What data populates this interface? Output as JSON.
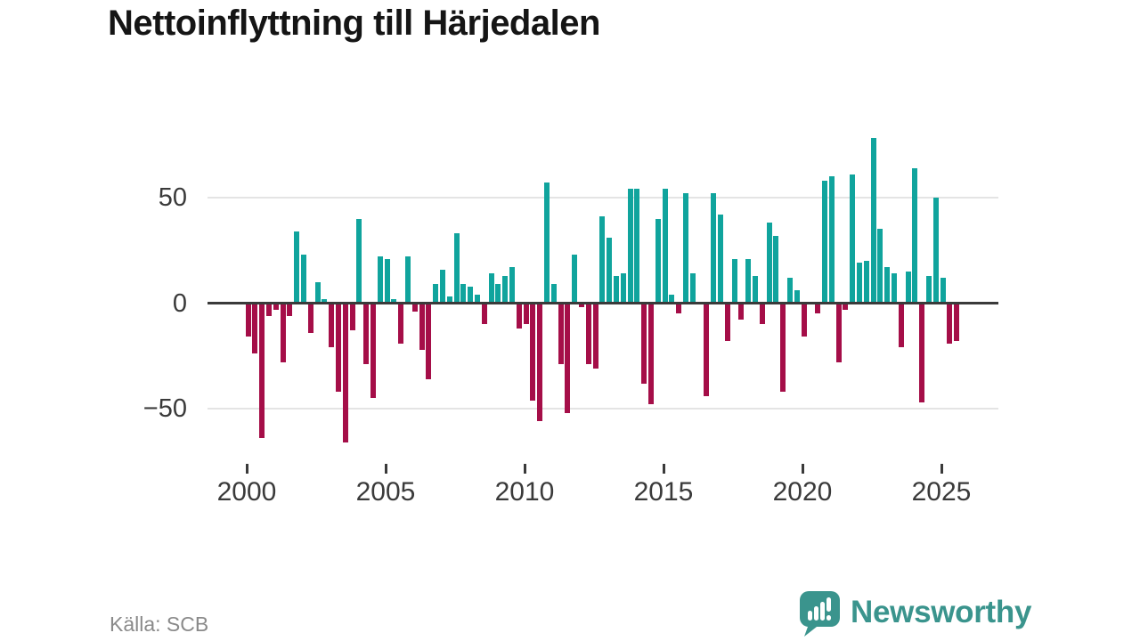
{
  "title": "Nettoinflyttning till Härjedalen",
  "source": {
    "label": "Källa: SCB"
  },
  "brand": {
    "name": "Newsworthy",
    "color": "#3a948d",
    "icon": "newsworthy-speech-bubble-chart"
  },
  "colors": {
    "positive_bar": "#10a49d",
    "negative_bar": "#a50e48",
    "gridline": "#e4e4e4",
    "zero_axis": "#3a3a3a",
    "tick_label": "#3a3a3a",
    "source_text": "#8a8a8a"
  },
  "chart_data": {
    "type": "bar",
    "title": "Nettoinflyttning till Härjedalen",
    "frequency": "quarterly",
    "start_year": 2000,
    "start_quarter": 1,
    "values": [
      -16,
      -24,
      -64,
      -6,
      -3,
      -28,
      -6,
      34,
      23,
      -14,
      10,
      2,
      -21,
      -42,
      -66,
      -13,
      40,
      -29,
      -45,
      22,
      21,
      2,
      -19,
      22,
      -4,
      -22,
      -36,
      9,
      16,
      3,
      33,
      9,
      8,
      4,
      -10,
      14,
      9,
      13,
      17,
      -12,
      -10,
      -46,
      -56,
      57,
      9,
      -29,
      -52,
      23,
      -2,
      -29,
      -31,
      41,
      31,
      13,
      14,
      54,
      54,
      -38,
      -48,
      40,
      54,
      4,
      -5,
      52,
      14,
      0,
      -44,
      52,
      42,
      -18,
      21,
      -8,
      21,
      13,
      -10,
      38,
      32,
      -42,
      12,
      6,
      -16,
      0,
      -5,
      58,
      60,
      -28,
      -3,
      61,
      19,
      20,
      78,
      35,
      17,
      14,
      -21,
      15,
      64,
      -47,
      13,
      50,
      12,
      -19,
      -18
    ],
    "x_axis": {
      "tick_years": [
        2000,
        2005,
        2010,
        2015,
        2020,
        2025
      ]
    },
    "y_axis": {
      "ticks": [
        {
          "value": 50,
          "label": "50"
        },
        {
          "value": 0,
          "label": "0"
        },
        {
          "value": -50,
          "label": "−50"
        }
      ],
      "ylim": [
        -66,
        78
      ]
    },
    "grid": true,
    "legend": "none"
  }
}
